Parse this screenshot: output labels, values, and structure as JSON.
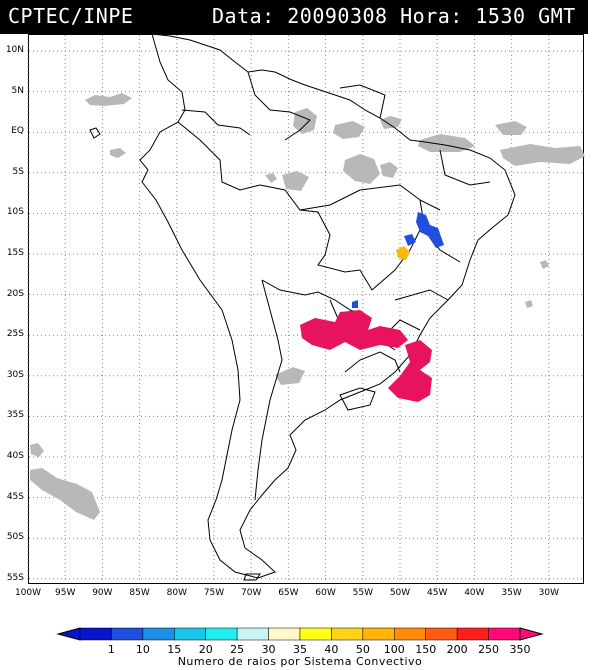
{
  "header": {
    "left": "CPTEC/INPE",
    "right": "Data: 20090308 Hora: 1530 GMT"
  },
  "map": {
    "lat_labels": [
      "10N",
      "5N",
      "EQ",
      "5S",
      "10S",
      "15S",
      "20S",
      "25S",
      "30S",
      "35S",
      "40S",
      "45S",
      "50S",
      "55S"
    ],
    "lon_labels": [
      "100W",
      "95W",
      "90W",
      "85W",
      "80W",
      "75W",
      "70W",
      "65W",
      "60W",
      "55W",
      "50W",
      "45W",
      "40W",
      "35W",
      "30W"
    ],
    "cloud_color": "#b8b8b8",
    "convective_color": "#e8135f",
    "blue_color": "#1f4fdc",
    "orange_color": "#f7b90f"
  },
  "legend": {
    "title": "Numero de raios por Sistema Convectivo",
    "ticks": [
      "1",
      "10",
      "15",
      "20",
      "25",
      "30",
      "35",
      "40",
      "50",
      "100",
      "150",
      "200",
      "250",
      "350"
    ],
    "colors": [
      "#0a14c8",
      "#1f4fdc",
      "#1e8ee6",
      "#1bc6e8",
      "#23ecec",
      "#c8f4f4",
      "#fff8c8",
      "#ffff1e",
      "#ffd21e",
      "#ffb40a",
      "#ff8c0a",
      "#ff5a14",
      "#ff1e1e",
      "#ff0a78"
    ]
  }
}
